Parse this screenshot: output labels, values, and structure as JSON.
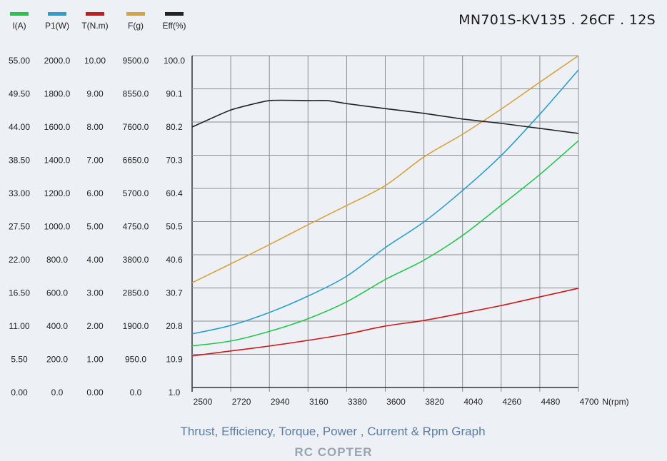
{
  "chart_data": {
    "type": "line",
    "title": "MN701S-KV135 . 26CF . 12S",
    "subtitle": "Thrust, Efficiency, Torque, Power , Current & Rpm Graph",
    "watermark": "RC COPTER",
    "xlabel": "N(rpm)",
    "xlim": [
      2500,
      4700
    ],
    "x_ticks": [
      "2500",
      "2720",
      "2940",
      "3160",
      "3380",
      "3600",
      "3820",
      "4040",
      "4260",
      "4480",
      "4700"
    ],
    "grid": true,
    "legend_position": "top-left",
    "axes": [
      {
        "label": "I(A)",
        "color": "#22c84a",
        "ylim": [
          0,
          55
        ],
        "ticks": [
          "0.00",
          "5.50",
          "11.00",
          "16.50",
          "22.00",
          "27.50",
          "33.00",
          "38.50",
          "44.00",
          "49.50",
          "55.00"
        ]
      },
      {
        "label": "P1(W)",
        "color": "#2a9fd0",
        "ylim": [
          0,
          2000
        ],
        "ticks": [
          "0.0",
          "200.0",
          "400.0",
          "600.0",
          "800.0",
          "1000.0",
          "1200.0",
          "1400.0",
          "1600.0",
          "1800.0",
          "2000.0"
        ]
      },
      {
        "label": "T(N.m)",
        "color": "#cc1a1a",
        "ylim": [
          0,
          10
        ],
        "ticks": [
          "0.00",
          "1.00",
          "2.00",
          "3.00",
          "4.00",
          "5.00",
          "6.00",
          "7.00",
          "8.00",
          "9.00",
          "10.00"
        ]
      },
      {
        "label": "F(g)",
        "color": "#d9a23c",
        "ylim": [
          0,
          9500
        ],
        "ticks": [
          "0.0",
          "950.0",
          "1900.0",
          "2850.0",
          "3800.0",
          "4750.0",
          "5700.0",
          "6650.0",
          "7600.0",
          "8550.0",
          "9500.0"
        ]
      },
      {
        "label": "Eff(%)",
        "color": "#222222",
        "ylim": [
          1,
          100
        ],
        "ticks": [
          "1.0",
          "10.9",
          "20.8",
          "30.7",
          "40.6",
          "50.5",
          "60.4",
          "70.3",
          "80.2",
          "90.1",
          "100.0"
        ]
      }
    ],
    "series": [
      {
        "name": "I(A)",
        "axis": 0,
        "x": [
          2500,
          2720,
          2940,
          3160,
          3380,
          3600,
          3820,
          4040,
          4260,
          4480,
          4700
        ],
        "values": [
          6.9,
          7.7,
          9.3,
          11.4,
          14.2,
          17.9,
          21.1,
          25.2,
          30.2,
          35.3,
          40.9
        ]
      },
      {
        "name": "P1(W)",
        "axis": 1,
        "x": [
          2500,
          2720,
          2940,
          3160,
          3380,
          3600,
          3820,
          4040,
          4260,
          4480,
          4700
        ],
        "values": [
          323,
          374,
          452,
          551,
          671,
          843,
          998,
          1187,
          1398,
          1647,
          1914
        ]
      },
      {
        "name": "T(N.m)",
        "axis": 2,
        "x": [
          2500,
          2720,
          2940,
          3160,
          3380,
          3600,
          3820,
          4040,
          4260,
          4480,
          4700
        ],
        "values": [
          0.95,
          1.1,
          1.25,
          1.42,
          1.61,
          1.85,
          2.02,
          2.24,
          2.47,
          2.73,
          2.99
        ]
      },
      {
        "name": "F(g)",
        "axis": 3,
        "x": [
          2500,
          2720,
          2940,
          3160,
          3380,
          3600,
          3820,
          4040,
          4260,
          4480,
          4700
        ],
        "values": [
          3000,
          3540,
          4090,
          4660,
          5210,
          5780,
          6600,
          7250,
          7970,
          8740,
          9500
        ]
      },
      {
        "name": "Eff(%)",
        "axis": 4,
        "x": [
          2500,
          2720,
          2940,
          3160,
          3270,
          3380,
          3600,
          3820,
          4040,
          4260,
          4480,
          4700
        ],
        "values": [
          78.7,
          83.8,
          86.6,
          86.6,
          86.6,
          85.7,
          84.2,
          82.8,
          81.1,
          79.8,
          78.3,
          76.8
        ]
      }
    ]
  }
}
